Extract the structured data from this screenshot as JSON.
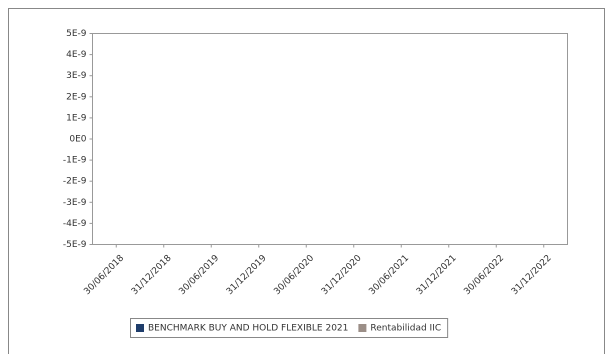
{
  "chart_data": {
    "type": "line",
    "categories": [
      "30/06/2018",
      "31/12/2018",
      "30/06/2019",
      "31/12/2019",
      "30/06/2020",
      "31/12/2020",
      "30/06/2021",
      "31/12/2021",
      "30/06/2022",
      "31/12/2022"
    ],
    "series": [
      {
        "name": "BENCHMARK BUY AND HOLD FLEXIBLE 2021",
        "color": "#1f3d6b",
        "values": [
          null,
          null,
          null,
          null,
          null,
          null,
          null,
          null,
          null,
          null
        ]
      },
      {
        "name": "Rentabilidad IIC",
        "color": "#9b8e87",
        "values": [
          null,
          null,
          null,
          null,
          null,
          null,
          null,
          null,
          null,
          null
        ]
      }
    ],
    "ylim": [
      -5e-09,
      5e-09
    ],
    "yticks": [
      {
        "value": 5e-09,
        "label": "5E-9"
      },
      {
        "value": 4e-09,
        "label": "4E-9"
      },
      {
        "value": 3e-09,
        "label": "3E-9"
      },
      {
        "value": 2e-09,
        "label": "2E-9"
      },
      {
        "value": 1e-09,
        "label": "1E-9"
      },
      {
        "value": 0,
        "label": "0E0"
      },
      {
        "value": -1e-09,
        "label": "-1E-9"
      },
      {
        "value": -2e-09,
        "label": "-2E-9"
      },
      {
        "value": -3e-09,
        "label": "-3E-9"
      },
      {
        "value": -4e-09,
        "label": "-4E-9"
      },
      {
        "value": -5e-09,
        "label": "-5E-9"
      }
    ],
    "grid": false,
    "legend": "bottom"
  }
}
